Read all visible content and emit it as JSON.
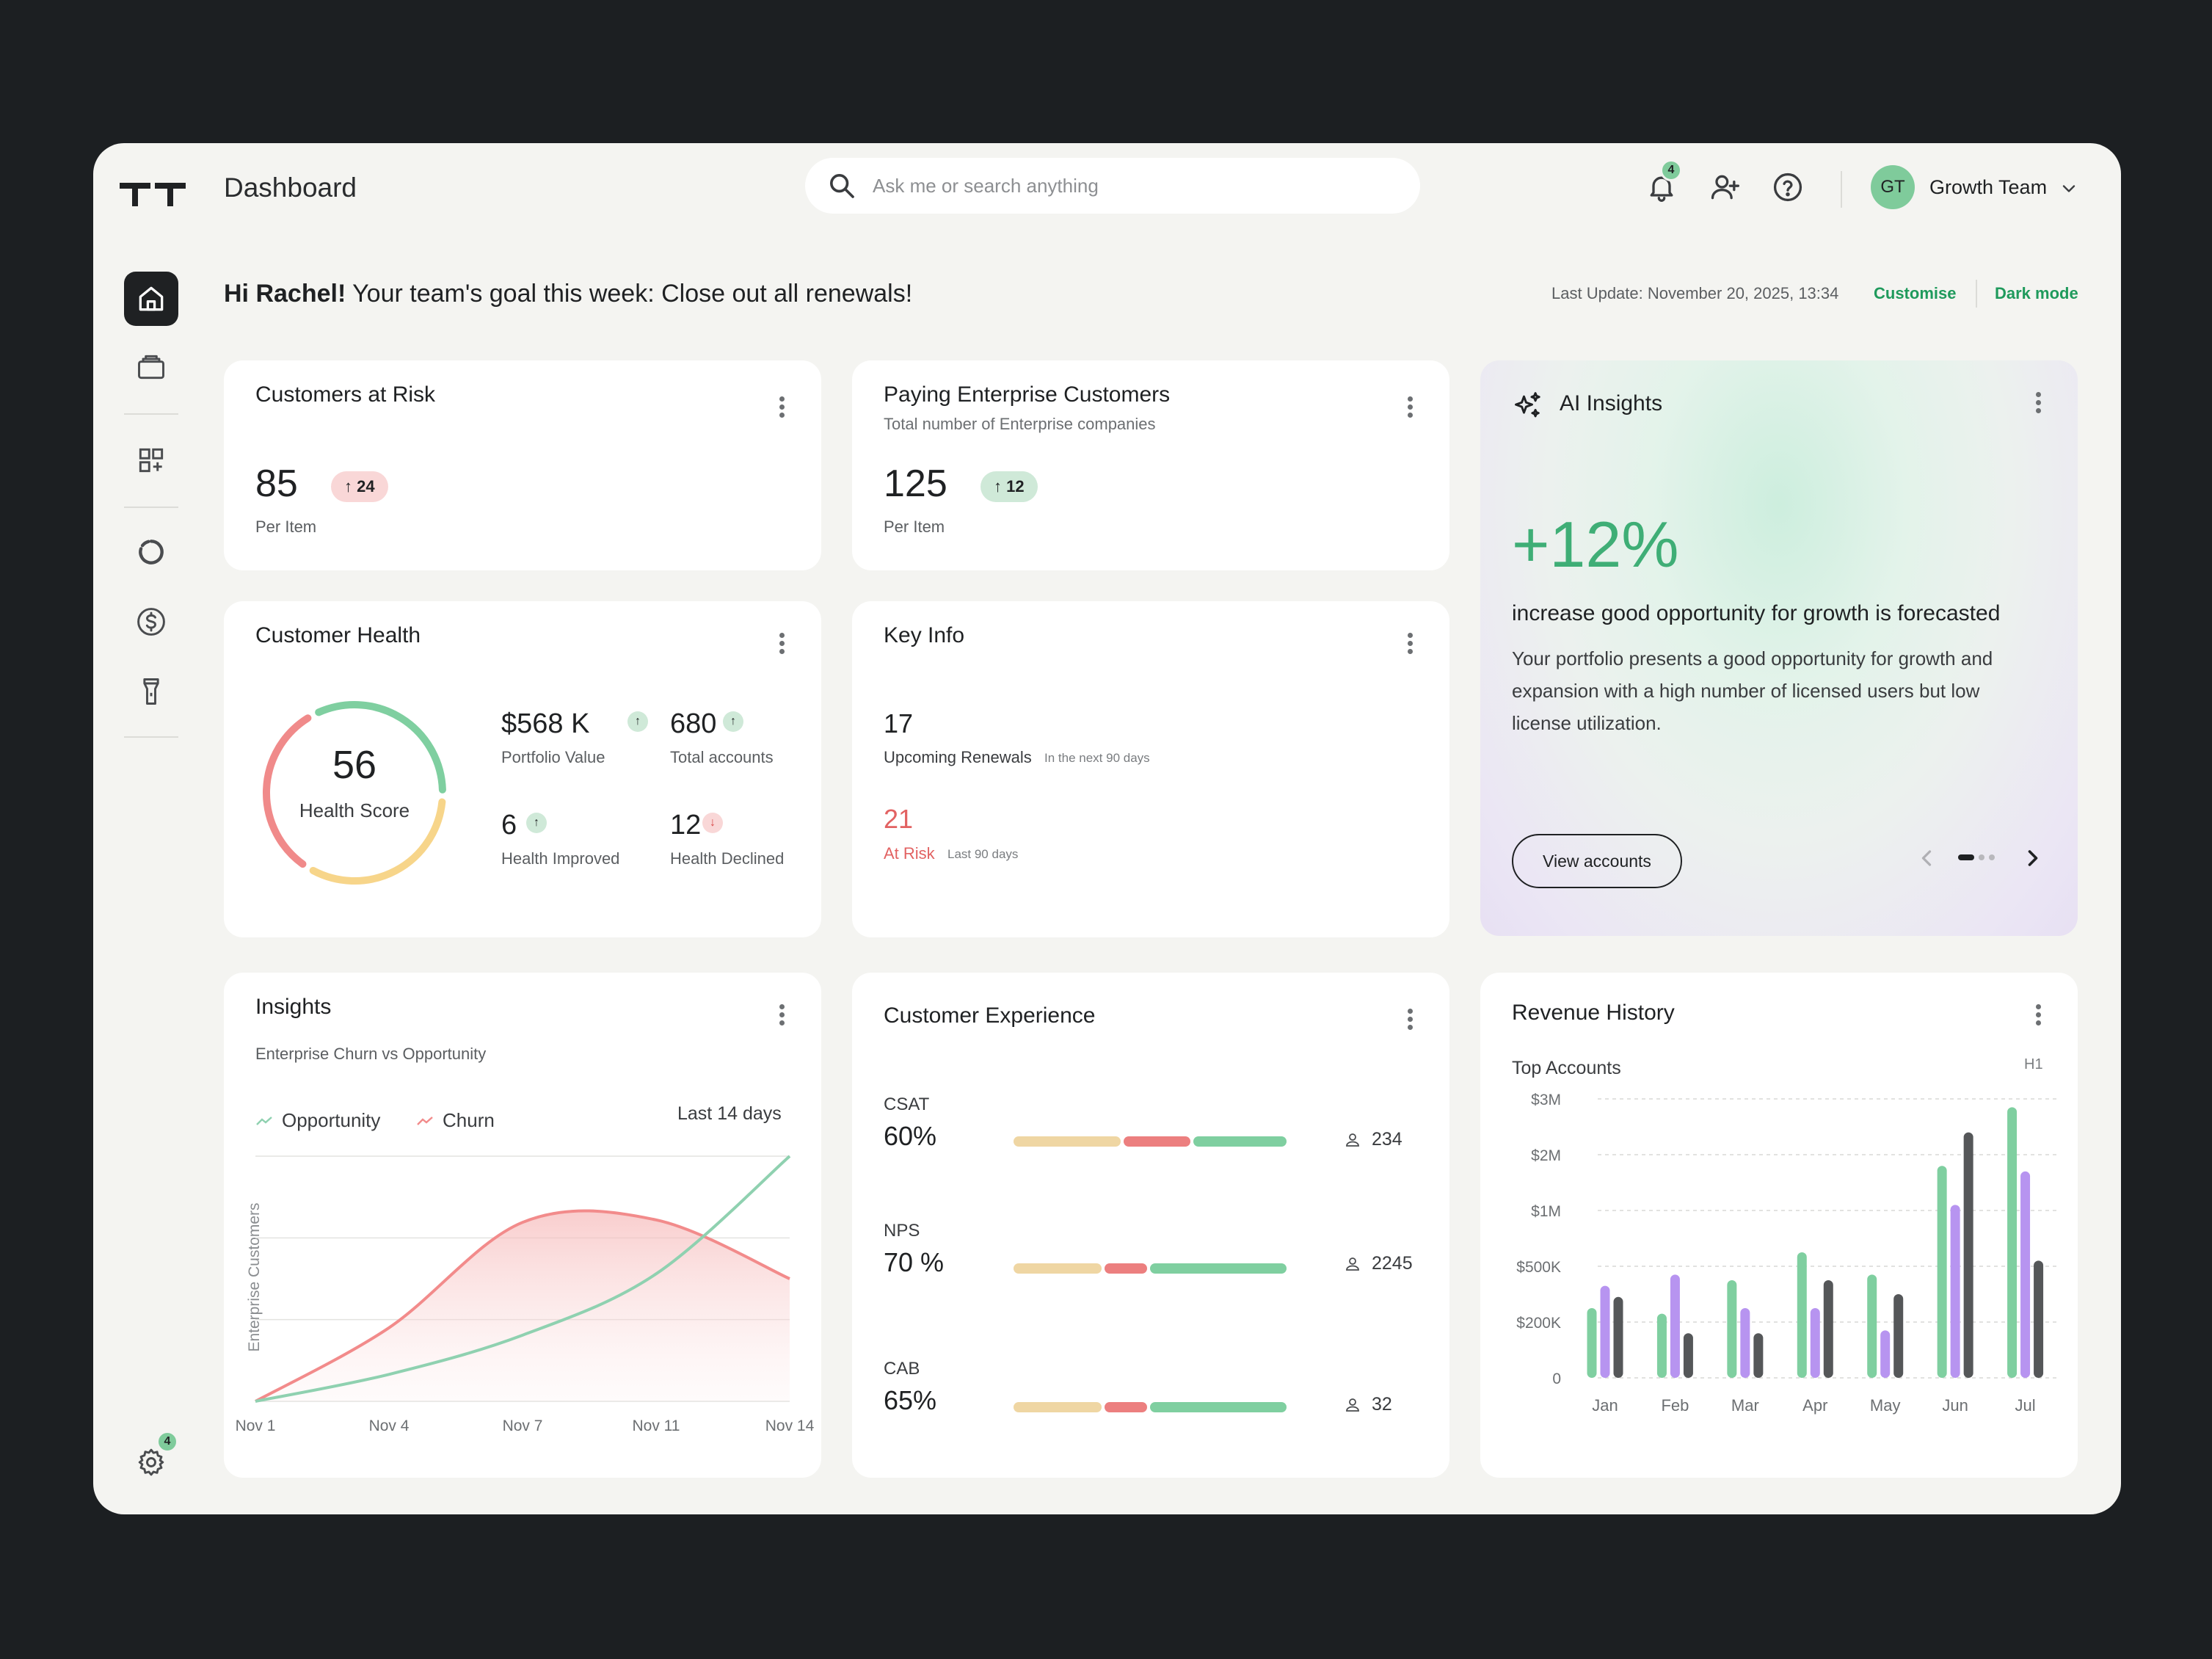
{
  "header": {
    "title": "Dashboard",
    "search_placeholder": "Ask me or search anything",
    "notification_count": "4",
    "user_initials": "GT",
    "team_name": "Growth Team"
  },
  "sidebar": {
    "items": [
      {
        "name": "home-icon",
        "active": true
      },
      {
        "name": "briefcase-icon"
      },
      {
        "name": "add-widget-icon"
      },
      {
        "name": "donut-chart-icon"
      },
      {
        "name": "dollar-icon"
      },
      {
        "name": "flashlight-icon"
      }
    ],
    "settings_badge": "4"
  },
  "greeting": {
    "name": "Hi Rachel!",
    "goal_prefix": " Your team's goal this week:  Close out all renewals!",
    "last_update": "Last Update: November 20, 2025, 13:34",
    "customise": "Customise",
    "dark_mode": "Dark mode"
  },
  "customers_at_risk": {
    "title": "Customers at Risk",
    "value": "85",
    "delta": "↑ 24",
    "unit": "Per Item"
  },
  "paying_enterprise": {
    "title": "Paying Enterprise Customers",
    "subtitle": "Total number of Enterprise companies",
    "value": "125",
    "delta": "↑ 12",
    "unit": "Per Item"
  },
  "customer_health": {
    "title": "Customer Health",
    "score": "56",
    "score_label": "Health Score",
    "metrics": [
      {
        "value": "$568 K",
        "label": "Portfolio Value",
        "trend": "up"
      },
      {
        "value": "680",
        "label": "Total accounts",
        "trend": "up"
      },
      {
        "value": "6",
        "label": "Health Improved",
        "trend": "up"
      },
      {
        "value": "12",
        "label": "Health Declined",
        "trend": "down"
      }
    ],
    "ring_colors": [
      "#f08a8a",
      "#7fcfa0",
      "#f7d58a"
    ]
  },
  "key_info": {
    "title": "Key Info",
    "renewals_value": "17",
    "renewals_label": "Upcoming Renewals",
    "renewals_note": "In the next 90 days",
    "risk_value": "21",
    "risk_label": "At Risk",
    "risk_note": "Last 90 days"
  },
  "ai_insights": {
    "title": "AI Insights",
    "big": "+12%",
    "headline": "increase good opportunity for growth is forecasted",
    "body": "Your portfolio presents a good opportunity for growth and expansion with a high number of licensed users but low license utilization.",
    "button": "View accounts",
    "page_count": 3,
    "active_page": 1
  },
  "insights": {
    "title": "Insights",
    "subtitle": "Enterprise Churn vs Opportunity",
    "range": "Last 14 days",
    "chart_data": {
      "type": "area",
      "title": "Insights",
      "subtitle": "Enterprise Churn vs Opportunity",
      "ylabel": "Enterprise Customers",
      "xlabel": "",
      "x": [
        "Nov 1",
        "Nov 4",
        "Nov 7",
        "Nov 11",
        "Nov 14"
      ],
      "ylim": [
        0,
        100
      ],
      "grid": true,
      "legend": "top-left",
      "series": [
        {
          "name": "Opportunity",
          "color": "#8fd1b0",
          "values": [
            0,
            11,
            27,
            52,
            100
          ]
        },
        {
          "name": "Churn",
          "color": "#f28b8b",
          "values": [
            0,
            30,
            73,
            74,
            50
          ]
        }
      ]
    }
  },
  "customer_experience": {
    "title": "Customer Experience",
    "rows": [
      {
        "label": "CSAT",
        "value": "60%",
        "count": "234",
        "segments": [
          40,
          25,
          35
        ]
      },
      {
        "label": "NPS",
        "value": "70 %",
        "count": "2245",
        "segments": [
          33,
          16,
          51
        ]
      },
      {
        "label": "CAB",
        "value": "65%",
        "count": "32",
        "segments": [
          33,
          16,
          51
        ]
      }
    ],
    "segment_colors": [
      "#efd6a3",
      "#ec7f7f",
      "#7fcfa0"
    ]
  },
  "revenue_history": {
    "title": "Revenue History",
    "subtitle": "Top Accounts",
    "period": "H1",
    "chart_data": {
      "type": "bar",
      "title": "Revenue History",
      "categories": [
        "Jan",
        "Feb",
        "Mar",
        "Apr",
        "May",
        "Jun",
        "Jul"
      ],
      "y_ticks": [
        "$3M",
        "$2M",
        "$1M",
        "$500K",
        "$200K",
        "0"
      ],
      "ylim": [
        0,
        5
      ],
      "grid": true,
      "series": [
        {
          "color": "#7fcfa0",
          "values": [
            1.25,
            1.15,
            1.75,
            2.25,
            1.85,
            3.8,
            4.85
          ]
        },
        {
          "color": "#b794f0",
          "values": [
            1.65,
            1.85,
            1.25,
            1.25,
            0.85,
            3.1,
            3.7
          ]
        },
        {
          "color": "#555759",
          "values": [
            1.45,
            0.8,
            0.8,
            1.75,
            1.5,
            4.4,
            2.1
          ]
        }
      ]
    }
  }
}
